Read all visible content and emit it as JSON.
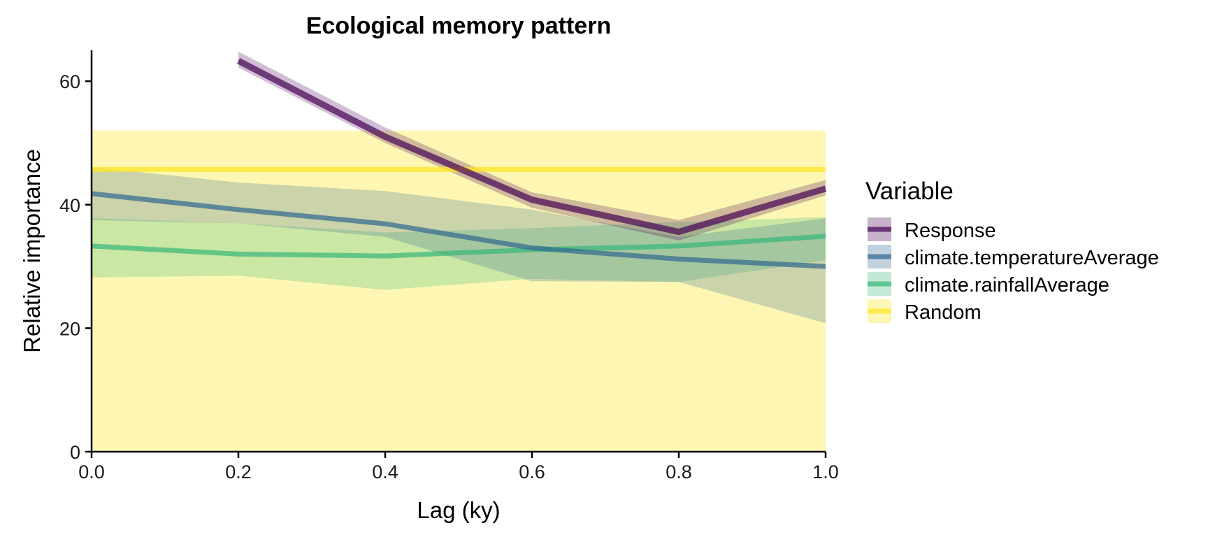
{
  "chart_data": {
    "type": "line",
    "title": "Ecological memory pattern",
    "xlabel": "Lag (ky)",
    "ylabel": "Relative importance",
    "xlim": [
      0,
      1
    ],
    "ylim": [
      0,
      65
    ],
    "x_ticks": [
      "0.0",
      "0.2",
      "0.4",
      "0.6",
      "0.8",
      "1.0"
    ],
    "y_ticks": [
      "0",
      "20",
      "40",
      "60"
    ],
    "grid": false,
    "legend": {
      "title": "Variable",
      "position": "right"
    },
    "series": [
      {
        "name": "Response",
        "color": "#440154",
        "x": [
          0.2,
          0.4,
          0.6,
          0.8,
          1.0
        ],
        "y": [
          63.3,
          51.0,
          40.8,
          35.6,
          42.6
        ],
        "lower": [
          62.2,
          50.0,
          39.5,
          34.2,
          41.5
        ],
        "upper": [
          64.8,
          52.5,
          42.0,
          37.5,
          44.0
        ]
      },
      {
        "name": "climate.temperatureAverage",
        "color": "#31688E",
        "x": [
          0.0,
          0.2,
          0.4,
          0.6,
          0.8,
          1.0
        ],
        "y": [
          41.8,
          39.2,
          36.9,
          33.0,
          31.2,
          30.0
        ],
        "lower": [
          37.5,
          37.0,
          34.8,
          27.6,
          27.5,
          20.8
        ],
        "upper": [
          46.1,
          43.6,
          42.2,
          39.2,
          34.8,
          37.8
        ]
      },
      {
        "name": "climate.rainfallAverage",
        "color": "#35B779",
        "x": [
          0.0,
          0.2,
          0.4,
          0.6,
          0.8,
          1.0
        ],
        "y": [
          33.3,
          32.0,
          31.7,
          32.7,
          33.3,
          34.9
        ],
        "lower": [
          28.2,
          28.5,
          26.2,
          28.0,
          27.5,
          31.0
        ],
        "upper": [
          37.8,
          37.0,
          35.5,
          36.2,
          37.2,
          38.0
        ]
      },
      {
        "name": "Random",
        "color": "#FDE725",
        "x": [
          0.0,
          0.2,
          0.4,
          0.6,
          0.8,
          1.0
        ],
        "y": [
          45.7,
          45.7,
          45.7,
          45.7,
          45.7,
          45.7
        ],
        "lower": [
          0,
          0,
          0,
          0,
          0,
          0
        ],
        "upper": [
          52,
          52,
          52,
          52,
          52,
          52
        ]
      }
    ]
  }
}
